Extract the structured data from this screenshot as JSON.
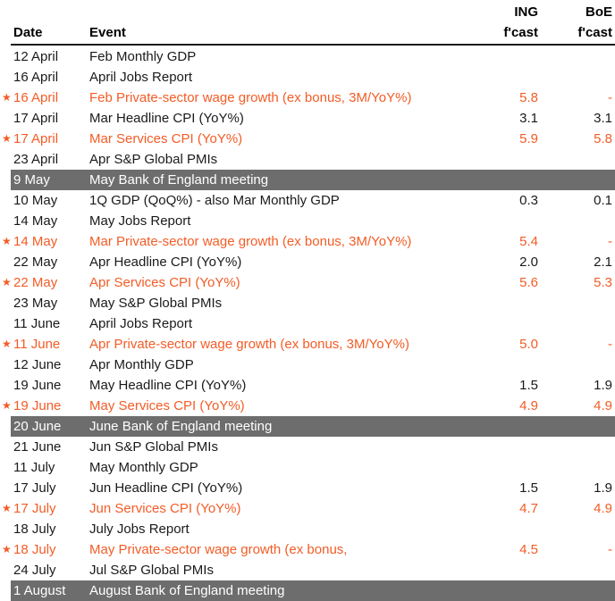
{
  "chart_data": {
    "type": "table",
    "columns": [
      "Date",
      "Event",
      "ING f'cast",
      "BoE f'cast"
    ],
    "header": {
      "date": "Date",
      "event": "Event",
      "ing_top": "ING",
      "ing_bottom": "f'cast",
      "boe_top": "BoE",
      "boe_bottom": "f'cast"
    },
    "legend_note_semantics": {
      "starred": "orange highlighted key release with star marker",
      "meeting": "grey banner row for Bank of England meeting"
    },
    "rows": [
      {
        "date": "12 April",
        "event": "Feb Monthly GDP",
        "ing": "",
        "boe": "",
        "starred": false,
        "meeting": false
      },
      {
        "date": "16 April",
        "event": "April Jobs Report",
        "ing": "",
        "boe": "",
        "starred": false,
        "meeting": false
      },
      {
        "date": "16 April",
        "event": "Feb Private-sector wage growth (ex bonus, 3M/YoY%)",
        "ing": "5.8",
        "boe": "-",
        "starred": true,
        "meeting": false
      },
      {
        "date": "17 April",
        "event": "Mar Headline CPI (YoY%)",
        "ing": "3.1",
        "boe": "3.1",
        "starred": false,
        "meeting": false
      },
      {
        "date": "17 April",
        "event": "Mar Services CPI (YoY%)",
        "ing": "5.9",
        "boe": "5.8",
        "starred": true,
        "meeting": false
      },
      {
        "date": "23 April",
        "event": "Apr S&P Global PMIs",
        "ing": "",
        "boe": "",
        "starred": false,
        "meeting": false
      },
      {
        "date": "9 May",
        "event": "May Bank of England meeting",
        "ing": "",
        "boe": "",
        "starred": false,
        "meeting": true
      },
      {
        "date": "10 May",
        "event": "1Q GDP (QoQ%) - also Mar Monthly GDP",
        "ing": "0.3",
        "boe": "0.1",
        "starred": false,
        "meeting": false
      },
      {
        "date": "14 May",
        "event": "May Jobs Report",
        "ing": "",
        "boe": "",
        "starred": false,
        "meeting": false
      },
      {
        "date": "14 May",
        "event": "Mar Private-sector wage growth (ex bonus, 3M/YoY%)",
        "ing": "5.4",
        "boe": "-",
        "starred": true,
        "meeting": false
      },
      {
        "date": "22 May",
        "event": "Apr Headline CPI (YoY%)",
        "ing": "2.0",
        "boe": "2.1",
        "starred": false,
        "meeting": false
      },
      {
        "date": "22 May",
        "event": "Apr Services CPI (YoY%)",
        "ing": "5.6",
        "boe": "5.3",
        "starred": true,
        "meeting": false
      },
      {
        "date": "23 May",
        "event": "May S&P Global PMIs",
        "ing": "",
        "boe": "",
        "starred": false,
        "meeting": false
      },
      {
        "date": "11 June",
        "event": "April Jobs Report",
        "ing": "",
        "boe": "",
        "starred": false,
        "meeting": false
      },
      {
        "date": "11 June",
        "event": "Apr Private-sector wage growth (ex bonus, 3M/YoY%)",
        "ing": "5.0",
        "boe": "-",
        "starred": true,
        "meeting": false
      },
      {
        "date": "12 June",
        "event": "Apr Monthly GDP",
        "ing": "",
        "boe": "",
        "starred": false,
        "meeting": false
      },
      {
        "date": "19 June",
        "event": "May Headline CPI (YoY%)",
        "ing": "1.5",
        "boe": "1.9",
        "starred": false,
        "meeting": false
      },
      {
        "date": "19 June",
        "event": "May Services CPI (YoY%)",
        "ing": "4.9",
        "boe": "4.9",
        "starred": true,
        "meeting": false
      },
      {
        "date": "20 June",
        "event": "June Bank of England meeting",
        "ing": "",
        "boe": "",
        "starred": false,
        "meeting": true
      },
      {
        "date": "21 June",
        "event": "Jun S&P Global PMIs",
        "ing": "",
        "boe": "",
        "starred": false,
        "meeting": false
      },
      {
        "date": "11 July",
        "event": "May Monthly GDP",
        "ing": "",
        "boe": "",
        "starred": false,
        "meeting": false
      },
      {
        "date": "17 July",
        "event": "Jun Headline CPI (YoY%)",
        "ing": "1.5",
        "boe": "1.9",
        "starred": false,
        "meeting": false
      },
      {
        "date": "17 July",
        "event": "Jun Services CPI (YoY%)",
        "ing": "4.7",
        "boe": "4.9",
        "starred": true,
        "meeting": false
      },
      {
        "date": "18 July",
        "event": "July Jobs Report",
        "ing": "",
        "boe": "",
        "starred": false,
        "meeting": false
      },
      {
        "date": "18 July",
        "event": "May Private-sector wage growth (ex bonus,",
        "ing": "4.5",
        "boe": "-",
        "starred": true,
        "meeting": false
      },
      {
        "date": "24 July",
        "event": "Jul S&P Global PMIs",
        "ing": "",
        "boe": "",
        "starred": false,
        "meeting": false
      },
      {
        "date": "1 August",
        "event": "August Bank of England meeting",
        "ing": "",
        "boe": "",
        "starred": false,
        "meeting": true
      }
    ]
  },
  "icons": {
    "star": "★"
  },
  "colors": {
    "accent_orange": "#F35C26",
    "meeting_gray": "#6D6D6D",
    "header_rule": "#1A1A1A",
    "text": "#1A1A1A",
    "meeting_text": "#FFFFFF",
    "background": "#FFFFFF"
  }
}
